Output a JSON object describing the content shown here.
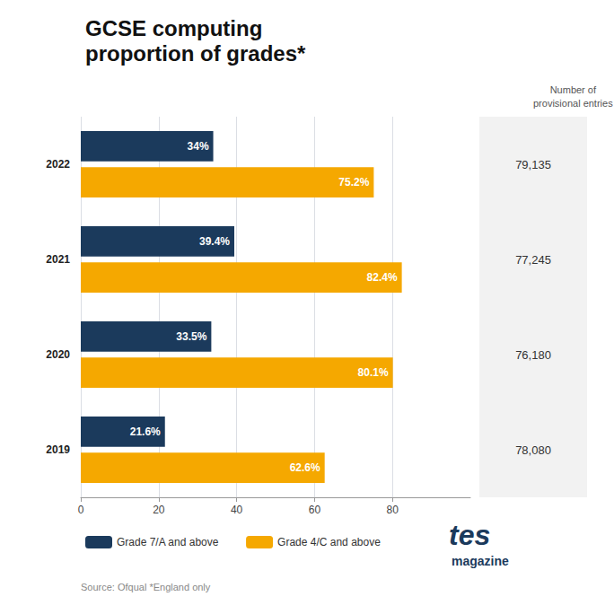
{
  "chart_data": {
    "type": "bar",
    "orientation": "horizontal",
    "title": "GCSE computing",
    "subtitle": "proportion of grades*",
    "categories": [
      "2022",
      "2021",
      "2020",
      "2019"
    ],
    "series": [
      {
        "name": "Grade 7/A and above",
        "color": "#1b3a5c",
        "values": [
          34.0,
          39.4,
          33.5,
          21.6
        ],
        "value_labels": [
          "34%",
          "39.4%",
          "33.5%",
          "21.6%"
        ]
      },
      {
        "name": "Grade 4/C and above",
        "color": "#f5a800",
        "values": [
          75.2,
          82.4,
          80.1,
          62.6
        ],
        "value_labels": [
          "75.2%",
          "82.4%",
          "80.1%",
          "62.6%"
        ]
      }
    ],
    "data_labels": true,
    "xlim": [
      0,
      100
    ],
    "xticks": [
      0,
      20,
      40,
      60,
      80
    ],
    "grid": true,
    "entries": {
      "title": "Number of\nprovisional entries",
      "values": [
        79135,
        77245,
        76180,
        78080
      ],
      "value_labels": [
        "79,135",
        "77,245",
        "76,180",
        "78,080"
      ]
    },
    "source": "Source: Ofqual *England only",
    "annotations": [
      "tes",
      "magazine"
    ]
  }
}
